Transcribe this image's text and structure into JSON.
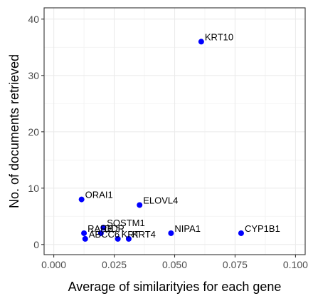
{
  "chart_data": {
    "type": "scatter",
    "title": "",
    "xlabel": "Average of similarityies for each gene",
    "ylabel": "No. of documents retrieved",
    "xlim": [
      -0.004,
      0.104
    ],
    "ylim": [
      -1.8,
      42
    ],
    "x_ticks": [
      0.0,
      0.025,
      0.05,
      0.075,
      0.1
    ],
    "x_tick_labels": [
      "0.000",
      "0.025",
      "0.050",
      "0.075",
      "0.100"
    ],
    "y_ticks": [
      0,
      10,
      20,
      30,
      40
    ],
    "y_tick_labels": [
      "0",
      "10",
      "20",
      "30",
      "40"
    ],
    "grid": true,
    "marker_color": "#0000ff",
    "points": [
      {
        "label": "KRT10",
        "x": 0.061,
        "y": 36
      },
      {
        "label": "ORAI1",
        "x": 0.0115,
        "y": 8
      },
      {
        "label": "ELOVL4",
        "x": 0.0355,
        "y": 7
      },
      {
        "label": "SQSTM1",
        "x": 0.0205,
        "y": 3
      },
      {
        "label": "RARB",
        "x": 0.0125,
        "y": 2
      },
      {
        "label": "NIPA1",
        "x": 0.0485,
        "y": 2
      },
      {
        "label": "CYP1B1",
        "x": 0.0775,
        "y": 2
      },
      {
        "label": "DDR",
        "x": 0.0195,
        "y": 2
      },
      {
        "label": "ABCC6",
        "x": 0.013,
        "y": 1
      },
      {
        "label": "KRT",
        "x": 0.0265,
        "y": 1
      },
      {
        "label": "KRT4",
        "x": 0.031,
        "y": 1
      }
    ]
  }
}
